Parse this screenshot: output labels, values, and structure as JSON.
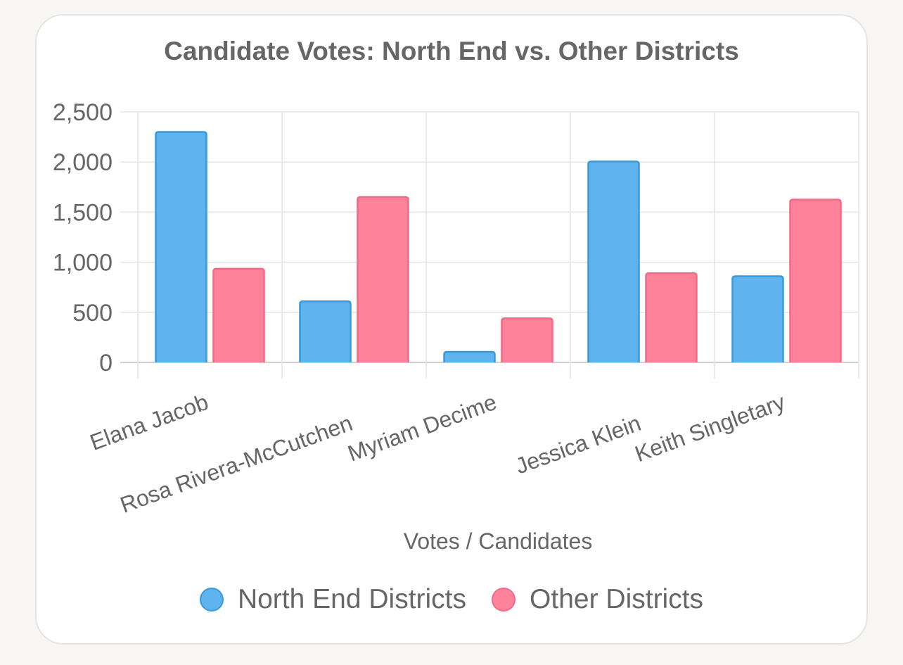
{
  "chart_data": {
    "type": "bar",
    "title": "Candidate Votes: North End vs. Other Districts",
    "xlabel": "Votes / Candidates",
    "ylabel": "",
    "categories": [
      "Elana Jacob",
      "Rosa Rivera-McCutchen",
      "Myriam Decime",
      "Jessica Klein",
      "Keith Singletary"
    ],
    "series": [
      {
        "name": "North End Districts",
        "values": [
          2300,
          610,
          105,
          2005,
          860
        ],
        "fill": "#5fb3ee",
        "stroke": "#3a9ad9"
      },
      {
        "name": "Other Districts",
        "values": [
          935,
          1650,
          440,
          890,
          1625
        ],
        "fill": "#fe8299",
        "stroke": "#f06a86"
      }
    ],
    "ylim": [
      0,
      2500
    ],
    "yticks": [
      0,
      500,
      1000,
      1500,
      2000,
      2500
    ],
    "ytick_labels": [
      "0",
      "500",
      "1,000",
      "1,500",
      "2,000",
      "2,500"
    ],
    "grid": true,
    "legend_position": "bottom"
  }
}
